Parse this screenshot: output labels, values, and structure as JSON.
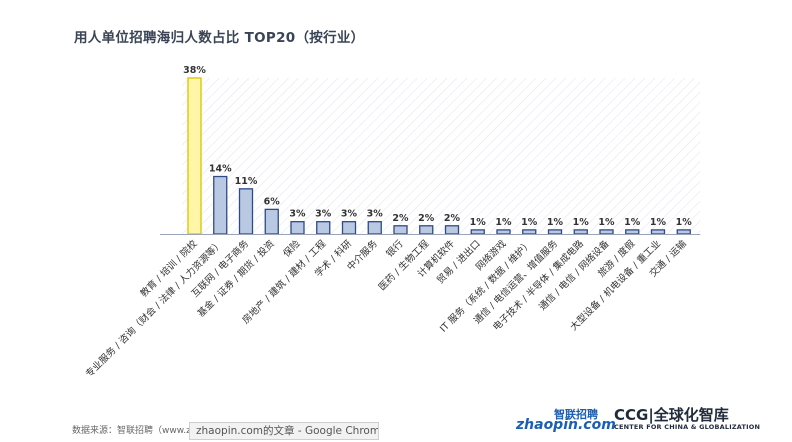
{
  "title": "用人单位招聘海归人数占比 TOP20（按行业）",
  "footer": {
    "source": "数据来源：智联招聘（www.zh",
    "tooltip": "zhaopin.com的文章 - Google Chrome"
  },
  "logos": {
    "zhaopin_top": "智联招聘",
    "zhaopin_bottom": "zhaopin.com",
    "ccg_main": "CCG|全球化智库",
    "ccg_sub": "CENTER FOR CHINA & GLOBALIZATION"
  },
  "colors": {
    "bar_fill": "#b9c8e3",
    "bar_stroke": "#2f4a87",
    "highlight_fill": "#fff6a8",
    "highlight_stroke": "#d9c400",
    "hatch": "#c6cbe0"
  },
  "chart_data": {
    "type": "bar",
    "title": "用人单位招聘海归人数占比 TOP20（按行业）",
    "xlabel": "",
    "ylabel": "",
    "ylim": [
      0,
      38
    ],
    "grid": false,
    "categories": [
      "教育 / 培训 / 院校",
      "专业服务 / 咨询（财会 / 法律 / 人力资源等）",
      "互联网 / 电子商务",
      "基金 / 证券 / 期货 / 投资",
      "保险",
      "房地产 / 建筑 / 建材 / 工程",
      "学术 / 科研",
      "中介服务",
      "银行",
      "医药 / 生物工程",
      "计算机软件",
      "贸易 / 进出口",
      "网络游戏",
      "IT 服务（系统 / 数据 / 维护）",
      "通信 / 电信运营、增值服务",
      "电子技术 / 半导体 / 集成电路",
      "通信 / 电信 / 网络设备",
      "旅游 / 度假",
      "大型设备 / 机电设备 / 重工业",
      "交通 / 运输"
    ],
    "values": [
      38,
      14,
      11,
      6,
      3,
      3,
      3,
      3,
      2,
      2,
      2,
      1,
      1,
      1,
      1,
      1,
      1,
      1,
      1,
      1
    ],
    "labels": [
      "38%",
      "14%",
      "11%",
      "6%",
      "3%",
      "3%",
      "3%",
      "3%",
      "2%",
      "2%",
      "2%",
      "1%",
      "1%",
      "1%",
      "1%",
      "1%",
      "1%",
      "1%",
      "1%",
      "1%"
    ],
    "highlight_index": 0
  }
}
